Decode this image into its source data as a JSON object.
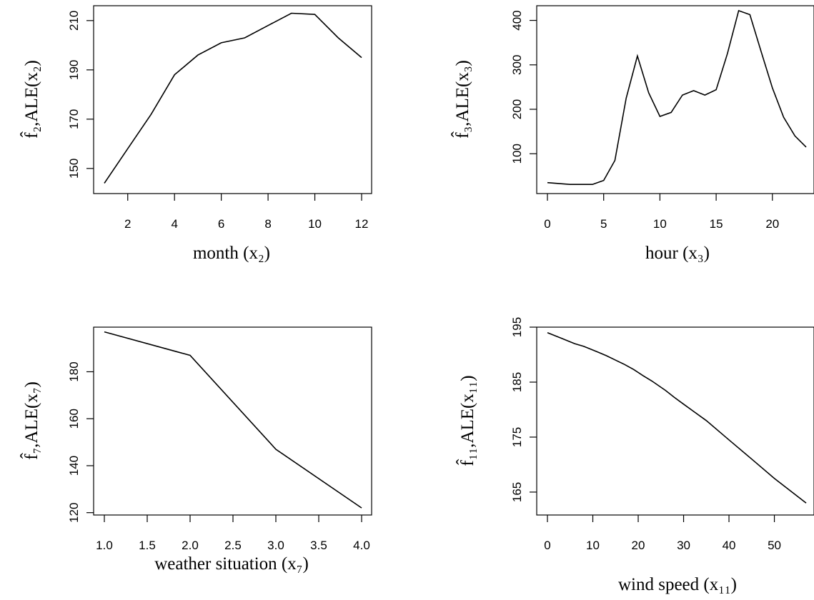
{
  "chart_data": [
    {
      "type": "line",
      "xlabel": "month (x₂)",
      "ylabel": "f̂₂,ALE(x₂)",
      "xlim": [
        1,
        12
      ],
      "ylim": [
        143,
        214
      ],
      "xticks": [
        2,
        4,
        6,
        8,
        10,
        12
      ],
      "yticks": [
        150,
        170,
        190,
        210
      ],
      "series": [
        {
          "x": [
            1,
            2,
            3,
            4,
            5,
            6,
            7,
            8,
            9,
            10,
            11,
            12
          ],
          "y": [
            144,
            158,
            172,
            188,
            196,
            201,
            203,
            208,
            213,
            212.5,
            203,
            195
          ]
        }
      ]
    },
    {
      "type": "line",
      "xlabel": "hour (x₃)",
      "ylabel": "f̂₃,ALE(x₃)",
      "xlim": [
        0,
        23
      ],
      "ylim": [
        20,
        425
      ],
      "xticks": [
        0,
        5,
        10,
        15,
        20
      ],
      "yticks": [
        100,
        200,
        300,
        400
      ],
      "series": [
        {
          "x": [
            0,
            1,
            2,
            3,
            4,
            5,
            6,
            7,
            8,
            9,
            10,
            11,
            12,
            13,
            14,
            15,
            16,
            17,
            18,
            19,
            20,
            21,
            22,
            23
          ],
          "y": [
            35,
            33,
            31,
            31,
            31,
            40,
            85,
            225,
            320,
            237,
            184,
            193,
            232,
            242,
            232,
            244,
            325,
            422,
            413,
            330,
            248,
            182,
            140,
            115
          ]
        }
      ]
    },
    {
      "type": "line",
      "xlabel": "weather situation (x₇)",
      "ylabel": "f̂₇,ALE(x₇)",
      "xlim": [
        1,
        4
      ],
      "ylim": [
        119,
        199
      ],
      "xticks": [
        1.0,
        1.5,
        2.0,
        2.5,
        3.0,
        3.5,
        4.0
      ],
      "xtick_labels": [
        "1.0",
        "1.5",
        "2.0",
        "2.5",
        "3.0",
        "3.5",
        "4.0"
      ],
      "yticks": [
        120,
        140,
        160,
        180
      ],
      "series": [
        {
          "x": [
            1,
            2,
            3,
            4
          ],
          "y": [
            197,
            187,
            147,
            122
          ]
        }
      ]
    },
    {
      "type": "line",
      "xlabel": "wind speed (x₁₁)",
      "ylabel": "f̂₁₁,ALE(x₁₁)",
      "xlim": [
        0,
        57
      ],
      "ylim": [
        162,
        195
      ],
      "xticks": [
        0,
        10,
        20,
        30,
        40,
        50
      ],
      "yticks": [
        165,
        175,
        185,
        195
      ],
      "series": [
        {
          "x": [
            0,
            3,
            6,
            8,
            11,
            13,
            15,
            17,
            19,
            21,
            23,
            26,
            28,
            30,
            32,
            35,
            40,
            45,
            50,
            57
          ],
          "y": [
            194,
            193,
            192,
            191.5,
            190.5,
            189.8,
            189,
            188.2,
            187.3,
            186.2,
            185.2,
            183.5,
            182.2,
            181,
            179.8,
            178,
            174.5,
            171,
            167.5,
            163
          ]
        }
      ]
    }
  ]
}
